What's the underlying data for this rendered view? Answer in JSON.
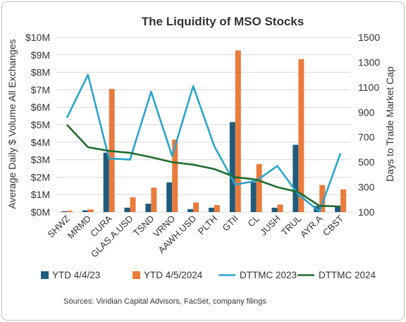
{
  "chart_data": {
    "type": "bar",
    "title": "The Liquidity of MSO Stocks",
    "ylabel": "Average Daily $ Volume All Exchanges",
    "y2label": "Days to Trade Market Cap",
    "ylim": [
      0,
      10000000
    ],
    "y2lim": [
      100,
      1500
    ],
    "yticks": [
      "$0M",
      "$1M",
      "$2M",
      "$3M",
      "$4M",
      "$5M",
      "$6M",
      "$7M",
      "$8M",
      "$9M",
      "$10M"
    ],
    "y2ticks": [
      "100",
      "300",
      "500",
      "700",
      "900",
      "1100",
      "1300",
      "1500"
    ],
    "grid": true,
    "legend_position": "bottom",
    "categories": [
      "SHWZ",
      "MRMD",
      "CURA",
      "GLAS.A.USD",
      "TSND",
      "VRNO",
      "AAWH.USD",
      "PLTH",
      "GTII",
      "CL",
      "JUSH",
      "TRUL",
      "AYR.A",
      "CBST"
    ],
    "series": [
      {
        "name": "YTD 4/4/23",
        "kind": "bar",
        "axis": "left",
        "color": "#1f5b7a",
        "values": [
          50000,
          100000,
          3400000,
          250000,
          480000,
          1700000,
          170000,
          250000,
          5150000,
          1700000,
          250000,
          3850000,
          350000,
          320000
        ]
      },
      {
        "name": "YTD 4/5/2024",
        "kind": "bar",
        "axis": "left",
        "color": "#e97b3c",
        "values": [
          80000,
          150000,
          7050000,
          850000,
          1400000,
          4150000,
          550000,
          400000,
          9250000,
          2750000,
          430000,
          8750000,
          1550000,
          1300000
        ]
      },
      {
        "name": "DTTMC 2023",
        "kind": "line",
        "axis": "right",
        "color": "#2aa4cc",
        "values": [
          855,
          1200,
          530,
          520,
          1065,
          550,
          1110,
          630,
          320,
          350,
          470,
          240,
          105,
          570
        ]
      },
      {
        "name": "DTTMC 2024",
        "kind": "line",
        "axis": "right",
        "color": "#1f6b2e",
        "values": [
          800,
          620,
          590,
          575,
          540,
          500,
          480,
          445,
          380,
          360,
          300,
          260,
          150,
          145
        ]
      }
    ],
    "source": "Sources: Viridian Capital Advisors, FacSet, company filings"
  }
}
